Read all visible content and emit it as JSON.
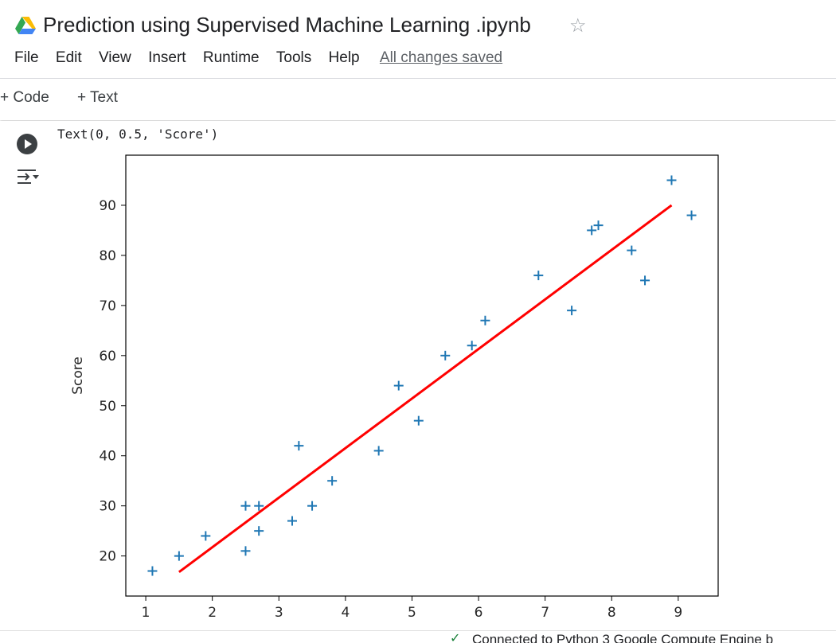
{
  "header": {
    "title": "Prediction using Supervised Machine Learning .ipynb",
    "menu": [
      "File",
      "Edit",
      "View",
      "Insert",
      "Runtime",
      "Tools",
      "Help"
    ],
    "saved_status": "All changes saved"
  },
  "toolbar": {
    "add_code_label": "+ Code",
    "add_text_label": "+ Text"
  },
  "cell": {
    "output_text": "Text(0, 0.5, 'Score')"
  },
  "status_bar": {
    "text": "Connected to Python 3 Google Compute Engine b"
  },
  "colors": {
    "points": "#1f77b4",
    "regression_line": "#ff0000"
  },
  "chart_data": {
    "type": "scatter",
    "ylabel": "Score",
    "xlim": [
      0.7,
      9.6
    ],
    "ylim": [
      12,
      100
    ],
    "x_ticks": [
      1,
      2,
      3,
      4,
      5,
      6,
      7,
      8,
      9
    ],
    "y_ticks": [
      20,
      30,
      40,
      50,
      60,
      70,
      80,
      90
    ],
    "marker": "+",
    "points": [
      {
        "x": 1.1,
        "y": 17
      },
      {
        "x": 1.5,
        "y": 20
      },
      {
        "x": 1.9,
        "y": 24
      },
      {
        "x": 2.5,
        "y": 21
      },
      {
        "x": 2.5,
        "y": 30
      },
      {
        "x": 2.7,
        "y": 25
      },
      {
        "x": 2.7,
        "y": 30
      },
      {
        "x": 3.2,
        "y": 27
      },
      {
        "x": 3.3,
        "y": 42
      },
      {
        "x": 3.5,
        "y": 30
      },
      {
        "x": 3.8,
        "y": 35
      },
      {
        "x": 4.5,
        "y": 41
      },
      {
        "x": 4.8,
        "y": 54
      },
      {
        "x": 5.1,
        "y": 47
      },
      {
        "x": 5.5,
        "y": 60
      },
      {
        "x": 5.9,
        "y": 62
      },
      {
        "x": 6.1,
        "y": 67
      },
      {
        "x": 6.9,
        "y": 76
      },
      {
        "x": 7.4,
        "y": 69
      },
      {
        "x": 7.7,
        "y": 85
      },
      {
        "x": 7.8,
        "y": 86
      },
      {
        "x": 8.3,
        "y": 81
      },
      {
        "x": 8.5,
        "y": 75
      },
      {
        "x": 8.9,
        "y": 95
      },
      {
        "x": 9.2,
        "y": 88
      }
    ],
    "regression_line": [
      {
        "x": 1.5,
        "y": 16.8
      },
      {
        "x": 8.9,
        "y": 90
      }
    ]
  }
}
